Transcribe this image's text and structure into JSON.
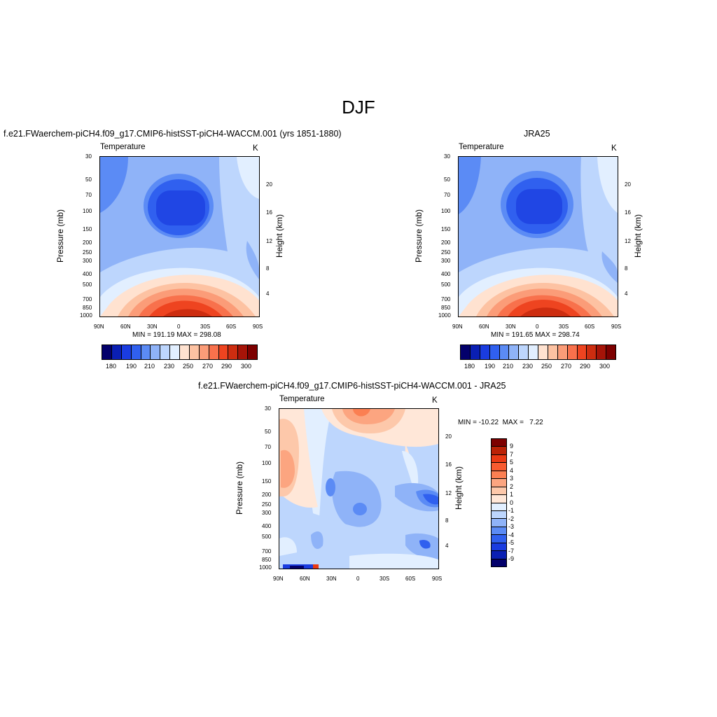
{
  "figure": {
    "title": "DJF"
  },
  "colors": {
    "abs_scale": [
      "#03006b",
      "#0a1fb3",
      "#1a3ce0",
      "#3060ef",
      "#5b8bf5",
      "#8fb3f8",
      "#bdd6fd",
      "#e2efff",
      "#ffe2d0",
      "#fdc2a2",
      "#fb9c78",
      "#f8714c",
      "#ee4420",
      "#cd2d10",
      "#a61408",
      "#7d0000"
    ],
    "diff_scale": [
      "#7d0000",
      "#bb2206",
      "#ea3a14",
      "#f85b30",
      "#fb7f52",
      "#fca580",
      "#fdc8aa",
      "#ffe7d8",
      "#e2efff",
      "#bdd6fd",
      "#8fb3f8",
      "#5b8bf5",
      "#3060ef",
      "#1a3ce0",
      "#0a1fb3",
      "#03006b"
    ]
  },
  "panels": [
    {
      "title": "f.e21.FWaerchem-piCH4.f09_g17.CMIP6-histSST-piCH4-WACCM.001 (yrs 1851-1880)",
      "variable": "Temperature",
      "units": "K",
      "minmax": "MIN = 191.19  MAX = 298.08",
      "colorbar_labels": [
        "180",
        "190",
        "210",
        "230",
        "250",
        "270",
        "290",
        "300"
      ]
    },
    {
      "title": "JRA25",
      "variable": "Temperature",
      "units": "K",
      "minmax": "MIN = 191.65  MAX = 298.74",
      "colorbar_labels": [
        "180",
        "190",
        "210",
        "230",
        "250",
        "270",
        "290",
        "300"
      ]
    },
    {
      "title": "f.e21.FWaerchem-piCH4.f09_g17.CMIP6-histSST-piCH4-WACCM.001 - JRA25",
      "variable": "Temperature",
      "units": "K",
      "minmax": "MIN = -10.22  MAX =   7.22",
      "colorbar_labels": [
        "9",
        "7",
        "5",
        "4",
        "3",
        "2",
        "1",
        "0",
        "-1",
        "-2",
        "-3",
        "-4",
        "-5",
        "-7",
        "-9"
      ]
    }
  ],
  "chart_data": [
    {
      "type": "heatmap",
      "title": "f.e21.FWaerchem-piCH4.f09_g17.CMIP6-histSST-piCH4-WACCM.001 (yrs 1851-1880)",
      "xlabel": "",
      "ylabel": "Pressure (mb)",
      "ylabel_right": "Height (km)",
      "x_ticks": [
        "90N",
        "60N",
        "30N",
        "0",
        "30S",
        "60S",
        "90S"
      ],
      "y_ticks": [
        30,
        50,
        70,
        100,
        150,
        200,
        250,
        300,
        400,
        500,
        700,
        850,
        1000
      ],
      "y_right_ticks": [
        4,
        8,
        12,
        16,
        20
      ],
      "xlim": [
        90,
        -90
      ],
      "ylim": [
        1000,
        30
      ],
      "y_scale": "log",
      "units": "K",
      "contour_levels": [
        180,
        185,
        190,
        200,
        210,
        220,
        230,
        240,
        250,
        260,
        270,
        280,
        290,
        295,
        300
      ],
      "min": 191.19,
      "max": 298.08
    },
    {
      "type": "heatmap",
      "title": "JRA25",
      "xlabel": "",
      "ylabel": "Pressure (mb)",
      "ylabel_right": "Height (km)",
      "x_ticks": [
        "90N",
        "60N",
        "30N",
        "0",
        "30S",
        "60S",
        "90S"
      ],
      "y_ticks": [
        30,
        50,
        70,
        100,
        150,
        200,
        250,
        300,
        400,
        500,
        700,
        850,
        1000
      ],
      "y_right_ticks": [
        4,
        8,
        12,
        16,
        20
      ],
      "xlim": [
        90,
        -90
      ],
      "ylim": [
        1000,
        30
      ],
      "y_scale": "log",
      "units": "K",
      "contour_levels": [
        180,
        185,
        190,
        200,
        210,
        220,
        230,
        240,
        250,
        260,
        270,
        280,
        290,
        295,
        300
      ],
      "min": 191.65,
      "max": 298.74
    },
    {
      "type": "heatmap",
      "title": "f.e21.FWaerchem-piCH4.f09_g17.CMIP6-histSST-piCH4-WACCM.001 - JRA25",
      "xlabel": "",
      "ylabel": "Pressure (mb)",
      "ylabel_right": "Height (km)",
      "x_ticks": [
        "90N",
        "60N",
        "30N",
        "0",
        "30S",
        "60S",
        "90S"
      ],
      "y_ticks": [
        30,
        50,
        70,
        100,
        150,
        200,
        250,
        300,
        400,
        500,
        700,
        850,
        1000
      ],
      "y_right_ticks": [
        4,
        8,
        12,
        16,
        20
      ],
      "xlim": [
        90,
        -90
      ],
      "ylim": [
        1000,
        30
      ],
      "y_scale": "log",
      "units": "K",
      "contour_levels": [
        -9,
        -7,
        -5,
        -4,
        -3,
        -2,
        -1,
        0,
        1,
        2,
        3,
        4,
        5,
        7,
        9
      ],
      "min": -10.22,
      "max": 7.22
    }
  ]
}
